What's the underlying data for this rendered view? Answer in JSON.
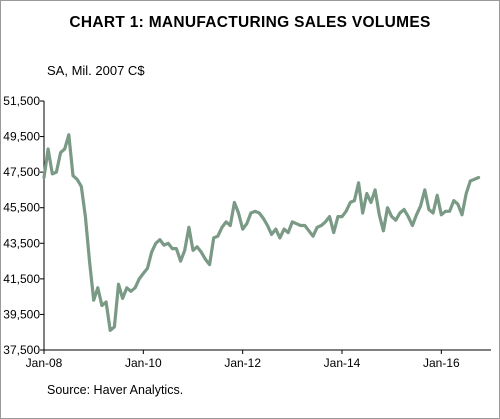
{
  "chart_data": {
    "type": "line",
    "title": "CHART 1: MANUFACTURING SALES VOLUMES",
    "units_label": "SA, Mil. 2007 C$",
    "source": "Source: Haver Analytics.",
    "ylim": [
      37500,
      51500
    ],
    "yticks": [
      37500,
      39500,
      41500,
      43500,
      45500,
      47500,
      49500,
      51500
    ],
    "ytick_labels": [
      "37,500",
      "39,500",
      "41,500",
      "43,500",
      "45,500",
      "47,500",
      "49,500",
      "51,500"
    ],
    "xlim": [
      0,
      108
    ],
    "xticks": [
      0,
      24,
      48,
      72,
      96
    ],
    "xtick_labels": [
      "Jan-08",
      "Jan-10",
      "Jan-12",
      "Jan-14",
      "Jan-16"
    ],
    "x_unit": "months since Jan-08",
    "grid": false,
    "legend": "none",
    "line_color": "#7a9a86",
    "series": [
      {
        "values": [
          47200,
          48800,
          47400,
          47500,
          48600,
          48800,
          49600,
          47300,
          47100,
          46700,
          45000,
          42500,
          40300,
          41000,
          40000,
          40200,
          38600,
          38800,
          41200,
          40400,
          41000,
          40800,
          41000,
          41500,
          41800,
          42100,
          43000,
          43500,
          43700,
          43400,
          43500,
          43200,
          43200,
          42500,
          43100,
          44400,
          43100,
          43300,
          43000,
          42600,
          42300,
          43800,
          43900,
          44400,
          44700,
          44500,
          45800,
          45200,
          44300,
          44600,
          45200,
          45300,
          45200,
          44900,
          44500,
          44000,
          44300,
          43800,
          44300,
          44100,
          44700,
          44600,
          44500,
          44500,
          44200,
          43900,
          44400,
          44500,
          44700,
          45000,
          44100,
          45000,
          45000,
          45300,
          45800,
          45900,
          46900,
          45200,
          46300,
          45800,
          46500,
          45100,
          44200,
          45500,
          45000,
          44800,
          45200,
          45400,
          45000,
          44500,
          45100,
          45600,
          46500,
          45400,
          45200,
          46200,
          45100,
          45300,
          45300,
          45900,
          45700,
          45100,
          46300,
          47000,
          47100,
          47200
        ]
      }
    ]
  }
}
